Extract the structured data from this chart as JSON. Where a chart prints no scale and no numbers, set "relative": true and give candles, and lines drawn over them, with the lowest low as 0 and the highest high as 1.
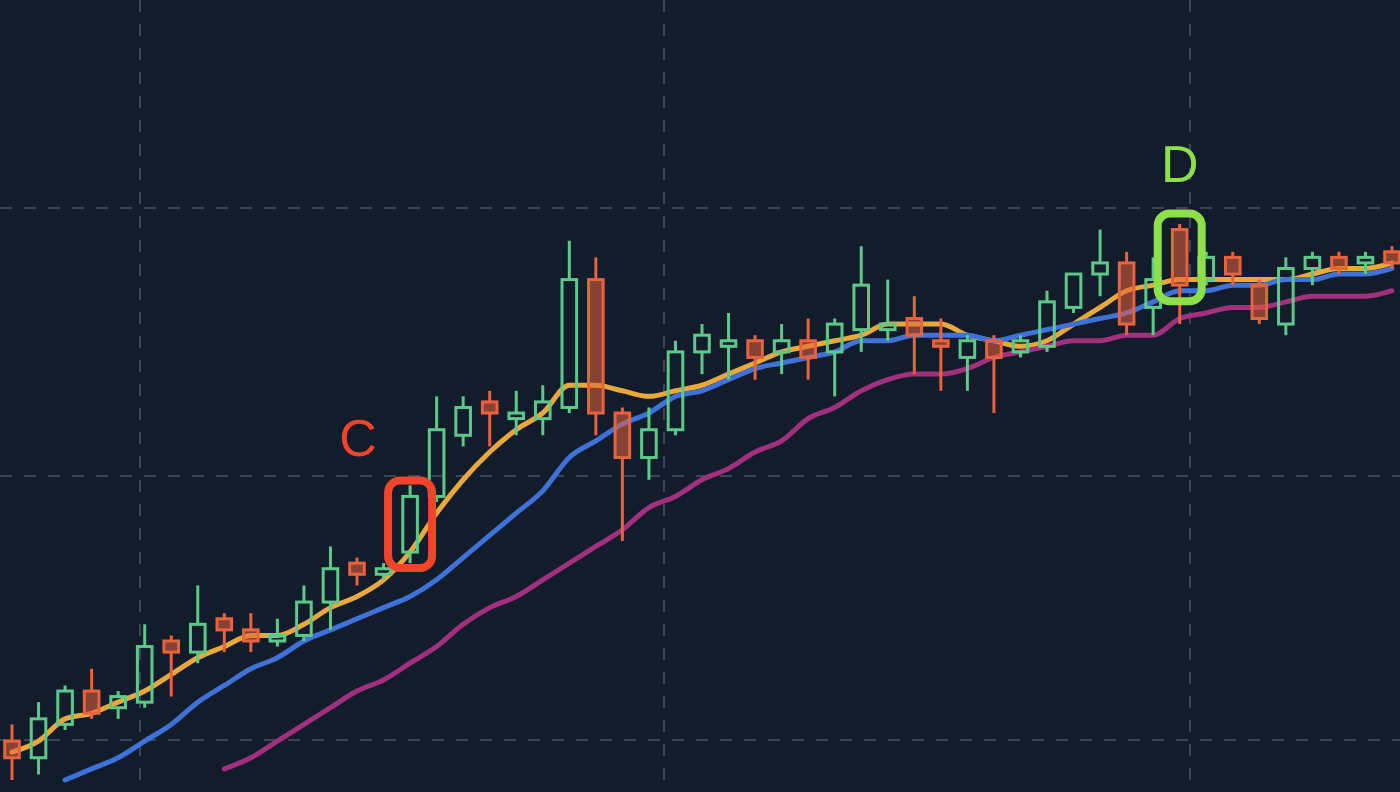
{
  "chart_data": {
    "type": "candlestick",
    "relative": true,
    "grid": true,
    "categories": [
      null,
      null,
      null,
      null,
      null,
      null,
      null,
      null,
      null,
      null,
      null,
      null,
      null,
      null,
      null,
      null,
      null,
      null,
      null,
      null,
      null,
      null,
      null,
      null,
      null,
      null,
      null,
      null,
      null,
      null,
      null,
      null,
      null,
      null,
      null,
      null,
      null,
      null,
      null,
      null,
      null,
      null,
      null,
      null,
      null,
      null,
      null,
      null,
      null,
      null,
      null,
      null,
      null
    ],
    "ohlc": [
      [
        0.07,
        0.1,
        0,
        0.04
      ],
      [
        0.04,
        0.14,
        0.01,
        0.11
      ],
      [
        0.1,
        0.17,
        0.09,
        0.16
      ],
      [
        0.16,
        0.2,
        0.11,
        0.12
      ],
      [
        0.13,
        0.16,
        0.11,
        0.15
      ],
      [
        0.14,
        0.28,
        0.13,
        0.24
      ],
      [
        0.25,
        0.26,
        0.15,
        0.23
      ],
      [
        0.23,
        0.35,
        0.21,
        0.28
      ],
      [
        0.29,
        0.3,
        0.23,
        0.27
      ],
      [
        0.27,
        0.3,
        0.23,
        0.25
      ],
      [
        0.25,
        0.29,
        0.24,
        0.26
      ],
      [
        0.26,
        0.35,
        0.25,
        0.32
      ],
      [
        0.32,
        0.42,
        0.27,
        0.38
      ],
      [
        0.39,
        0.4,
        0.35,
        0.37
      ],
      [
        0.37,
        0.39,
        0.36,
        0.38
      ],
      [
        0.41,
        0.53,
        0.39,
        0.51
      ],
      [
        0.51,
        0.69,
        0.5,
        0.63
      ],
      [
        0.62,
        0.69,
        0.6,
        0.67
      ],
      [
        0.68,
        0.7,
        0.6,
        0.66
      ],
      [
        0.65,
        0.7,
        0.62,
        0.66
      ],
      [
        0.65,
        0.71,
        0.62,
        0.68
      ],
      [
        0.67,
        0.97,
        0.66,
        0.9
      ],
      [
        0.9,
        0.94,
        0.62,
        0.66
      ],
      [
        0.66,
        0.67,
        0.43,
        0.58
      ],
      [
        0.58,
        0.67,
        0.54,
        0.63
      ],
      [
        0.63,
        0.79,
        0.62,
        0.77
      ],
      [
        0.77,
        0.82,
        0.73,
        0.8
      ],
      [
        0.78,
        0.84,
        0.72,
        0.79
      ],
      [
        0.79,
        0.8,
        0.72,
        0.76
      ],
      [
        0.77,
        0.82,
        0.73,
        0.79
      ],
      [
        0.79,
        0.83,
        0.72,
        0.76
      ],
      [
        0.77,
        0.83,
        0.69,
        0.82
      ],
      [
        0.81,
        0.96,
        0.77,
        0.89
      ],
      [
        0.81,
        0.9,
        0.79,
        0.82
      ],
      [
        0.83,
        0.87,
        0.73,
        0.8
      ],
      [
        0.79,
        0.83,
        0.7,
        0.78
      ],
      [
        0.76,
        0.8,
        0.7,
        0.79
      ],
      [
        0.79,
        0.8,
        0.66,
        0.76
      ],
      [
        0.77,
        0.8,
        0.76,
        0.79
      ],
      [
        0.78,
        0.88,
        0.77,
        0.86
      ],
      [
        0.85,
        0.91,
        0.84,
        0.91
      ],
      [
        0.91,
        0.99,
        0.87,
        0.93
      ],
      [
        0.93,
        0.95,
        0.8,
        0.82
      ],
      [
        0.85,
        0.94,
        0.8,
        0.9
      ],
      [
        0.99,
        1,
        0.82,
        0.89
      ],
      [
        0.9,
        0.95,
        0.89,
        0.94
      ],
      [
        0.94,
        0.95,
        0.89,
        0.91
      ],
      [
        0.89,
        0.9,
        0.82,
        0.83
      ],
      [
        0.82,
        0.94,
        0.8,
        0.92
      ],
      [
        0.92,
        0.95,
        0.89,
        0.94
      ],
      [
        0.94,
        0.95,
        0.91,
        0.92
      ],
      [
        0.93,
        0.95,
        0.91,
        0.94
      ],
      [
        0.95,
        0.96,
        0.92,
        0.93
      ]
    ],
    "series": [
      {
        "type": "line",
        "color": "#e9a93a",
        "values": [
          0.05,
          0.07,
          0.11,
          0.12,
          0.14,
          0.16,
          0.19,
          0.22,
          0.24,
          0.26,
          0.26,
          0.28,
          0.31,
          0.33,
          0.36,
          0.41,
          0.48,
          0.54,
          0.59,
          0.63,
          0.66,
          0.71,
          0.71,
          0.7,
          0.69,
          0.7,
          0.71,
          0.73,
          0.75,
          0.77,
          0.78,
          0.79,
          0.8,
          0.82,
          0.82,
          0.82,
          0.8,
          0.79,
          0.78,
          0.79,
          0.82,
          0.85,
          0.88,
          0.89,
          0.9,
          0.9,
          0.9,
          0.9,
          0.9,
          0.91,
          0.92,
          0.92,
          0.93
        ]
      },
      {
        "type": "line",
        "color": "#3f72d9",
        "values": [
          null,
          null,
          0,
          0.02,
          0.04,
          0.07,
          0.1,
          0.14,
          0.17,
          0.2,
          0.22,
          0.25,
          0.27,
          0.29,
          0.31,
          0.33,
          0.36,
          0.4,
          0.44,
          0.48,
          0.52,
          0.58,
          0.61,
          0.64,
          0.66,
          0.69,
          0.7,
          0.72,
          0.74,
          0.75,
          0.76,
          0.77,
          0.79,
          0.79,
          0.8,
          0.8,
          0.8,
          0.79,
          0.8,
          0.81,
          0.82,
          0.83,
          0.84,
          0.86,
          0.88,
          0.88,
          0.89,
          0.89,
          0.9,
          0.9,
          0.91,
          0.91,
          0.92
        ]
      },
      {
        "type": "line",
        "color": "#a3307c",
        "values": [
          null,
          null,
          null,
          null,
          null,
          null,
          null,
          null,
          0.02,
          0.04,
          0.07,
          0.1,
          0.13,
          0.16,
          0.18,
          0.21,
          0.24,
          0.28,
          0.31,
          0.33,
          0.36,
          0.39,
          0.42,
          0.45,
          0.49,
          0.51,
          0.54,
          0.56,
          0.59,
          0.61,
          0.65,
          0.67,
          0.7,
          0.72,
          0.73,
          0.73,
          0.74,
          0.76,
          0.77,
          0.78,
          0.79,
          0.79,
          0.8,
          0.8,
          0.83,
          0.84,
          0.85,
          0.85,
          0.86,
          0.87,
          0.87,
          0.87,
          0.88
        ]
      }
    ],
    "annotations": [
      "C",
      "D"
    ]
  }
}
